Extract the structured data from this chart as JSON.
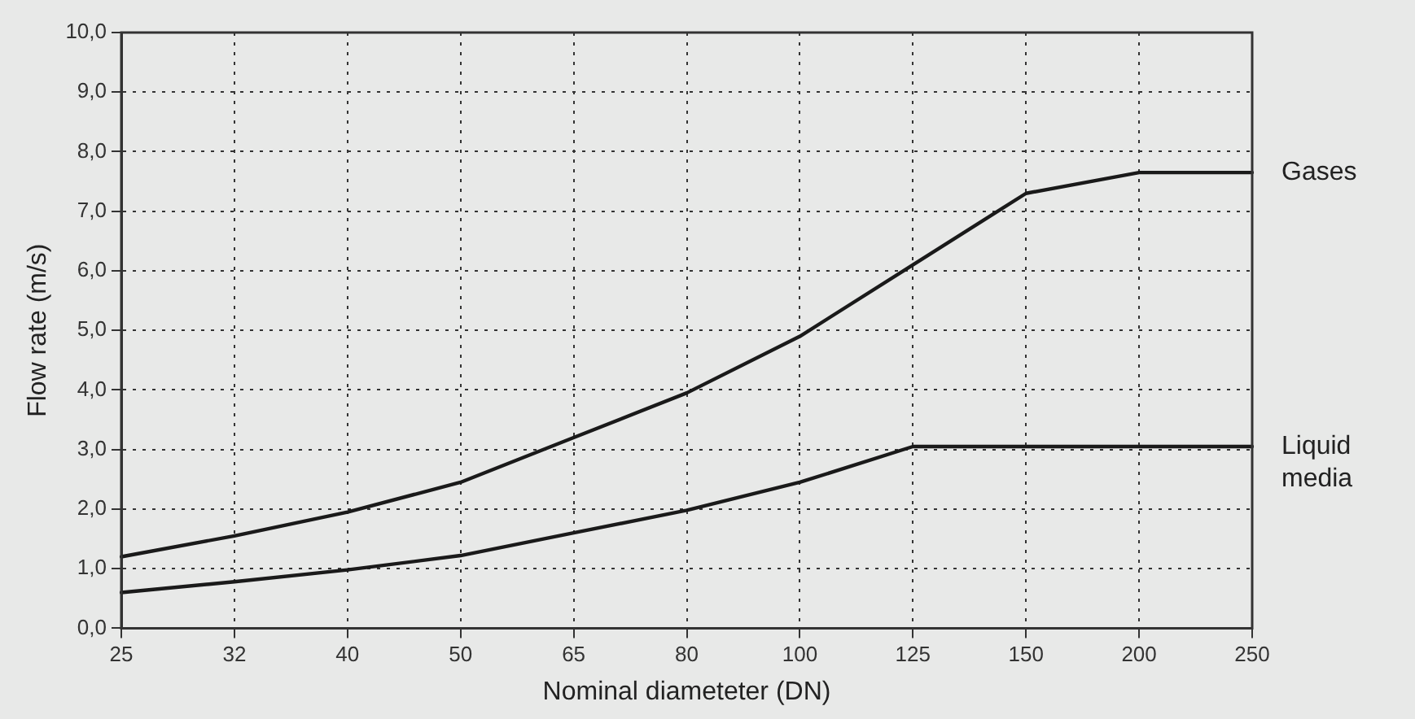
{
  "chart_data": {
    "type": "line",
    "xlabel": "Nominal diameteter (DN)",
    "ylabel": "Flow rate (m/s)",
    "categories": [
      "25",
      "32",
      "40",
      "50",
      "65",
      "80",
      "100",
      "125",
      "150",
      "200",
      "250"
    ],
    "series": [
      {
        "name": "Gases",
        "color": "#1a1a1a",
        "values": [
          1.2,
          1.55,
          1.95,
          2.45,
          3.2,
          3.95,
          4.9,
          6.1,
          7.3,
          7.65,
          7.65
        ]
      },
      {
        "name": "Liquid media",
        "color": "#1a1a1a",
        "values": [
          0.6,
          0.78,
          0.98,
          1.22,
          1.6,
          1.98,
          2.45,
          3.05,
          3.05,
          3.05,
          3.05
        ]
      }
    ],
    "ylim": [
      0,
      10
    ],
    "yticks": [
      {
        "value": 0,
        "label": "0,0"
      },
      {
        "value": 1,
        "label": "1,0"
      },
      {
        "value": 2,
        "label": "2,0"
      },
      {
        "value": 3,
        "label": "3,0"
      },
      {
        "value": 4,
        "label": "4,0"
      },
      {
        "value": 5,
        "label": "5,0"
      },
      {
        "value": 6,
        "label": "6,0"
      },
      {
        "value": 7,
        "label": "7,0"
      },
      {
        "value": 8,
        "label": "8,0"
      },
      {
        "value": 9,
        "label": "9,0"
      },
      {
        "value": 10,
        "label": "10,0"
      }
    ],
    "grid": true,
    "legend": false,
    "marker": "none",
    "line_style": "solid"
  }
}
